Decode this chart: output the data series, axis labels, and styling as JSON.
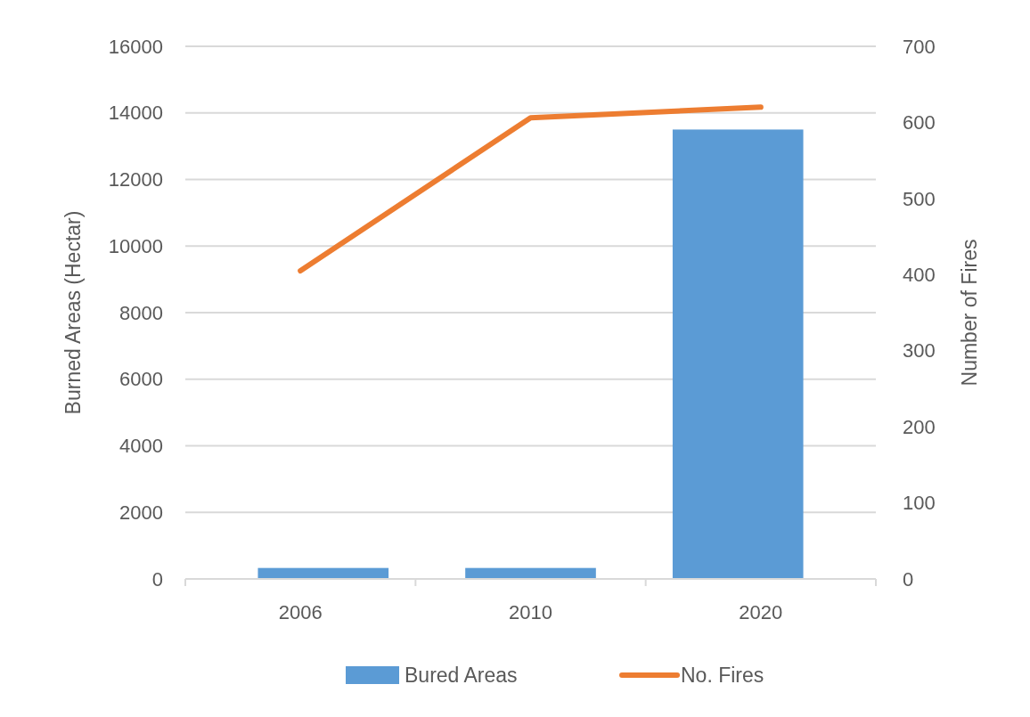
{
  "chart_data": {
    "type": "bar",
    "categories": [
      "2006",
      "2010",
      "2020"
    ],
    "ylabel": "Burned Areas (Hectar)",
    "y2label": "Number of Fires",
    "series": [
      {
        "name": "Bured Areas",
        "color": "#5b9bd5",
        "values": [
          330,
          330,
          13500
        ]
      },
      {
        "name": "No. Fires",
        "type": "line",
        "axis": "y2",
        "color": "#ed7d31",
        "values": [
          405,
          606,
          620
        ]
      }
    ],
    "ylim": [
      0,
      16000
    ],
    "yticks": [
      0,
      2000,
      4000,
      6000,
      8000,
      10000,
      12000,
      14000,
      16000
    ],
    "y2lim": [
      0,
      700
    ],
    "y2ticks": [
      0,
      100,
      200,
      300,
      400,
      500,
      600,
      700
    ],
    "grid": "y",
    "legend": "bottom",
    "marker": "none",
    "line_style": "solid"
  }
}
